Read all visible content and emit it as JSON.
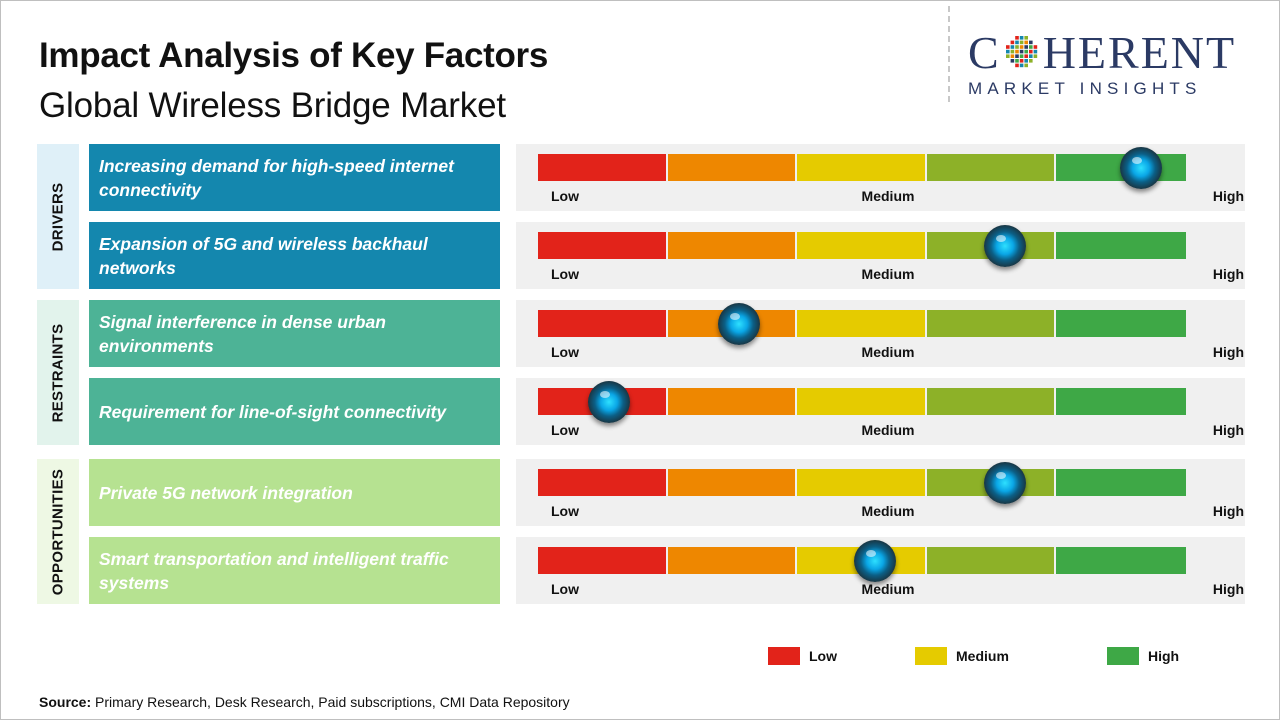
{
  "header": {
    "title": "Impact Analysis of Key Factors",
    "subtitle": "Global Wireless Bridge Market"
  },
  "logo": {
    "line1_a": "C",
    "line1_b": "HERENT",
    "line2": "MARKET INSIGHTS"
  },
  "colors": {
    "low": "#e2231a",
    "low_medium": "#ee8700",
    "medium": "#e5cb00",
    "medium_high": "#8db128",
    "high": "#3ea846",
    "drivers": "#1487ae",
    "restraints": "#4db396",
    "opportunities": "#b6e291"
  },
  "chart_data": {
    "type": "table",
    "scale_labels": [
      "Low",
      "Medium",
      "High"
    ],
    "categories": [
      {
        "name": "DRIVERS",
        "factors": [
          {
            "label": "Increasing demand for high-speed internet connectivity",
            "impact": 0.93
          },
          {
            "label": "Expansion of 5G and wireless backhaul networks",
            "impact": 0.72
          }
        ]
      },
      {
        "name": "RESTRAINTS",
        "factors": [
          {
            "label": "Signal interference in dense urban environments",
            "impact": 0.31
          },
          {
            "label": "Requirement for line-of-sight connectivity",
            "impact": 0.11
          }
        ]
      },
      {
        "name": "OPPORTUNITIES",
        "factors": [
          {
            "label": "Private 5G network integration",
            "impact": 0.72
          },
          {
            "label": "Smart transportation and intelligent traffic systems",
            "impact": 0.52
          }
        ]
      }
    ],
    "legend": [
      "Low",
      "Medium",
      "High"
    ]
  },
  "source": {
    "label": "Source:",
    "text": "Primary Research, Desk Research, Paid subscriptions, CMI Data Repository"
  }
}
